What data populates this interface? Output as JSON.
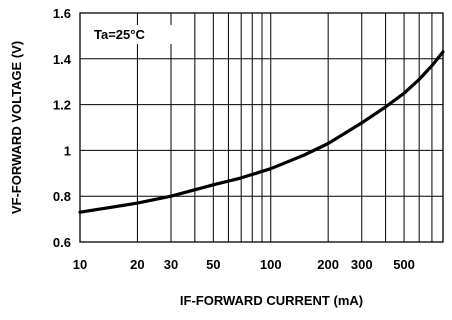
{
  "chart_data": {
    "type": "line",
    "xscale": "log",
    "xlim": [
      10,
      800
    ],
    "ylim": [
      0.6,
      1.6
    ],
    "xlabel": "IF-FORWARD CURRENT (mA)",
    "ylabel": "VF-FORWARD VOLTAGE (V)",
    "annotation": "Ta=25°C",
    "grid": true,
    "x_ticks": [
      10,
      20,
      30,
      50,
      100,
      200,
      300,
      500
    ],
    "x_tick_labels": [
      "10",
      "20",
      "30",
      "50",
      "100",
      "200",
      "300",
      "500"
    ],
    "y_ticks": [
      0.6,
      0.8,
      1.0,
      1.2,
      1.4,
      1.6
    ],
    "y_tick_labels": [
      "0.6",
      "0.8",
      "1",
      "1.2",
      "1.4",
      "1.6"
    ],
    "series": [
      {
        "x": [
          10,
          20,
          30,
          50,
          70,
          100,
          150,
          200,
          300,
          400,
          500,
          600,
          700,
          800
        ],
        "y": [
          0.73,
          0.77,
          0.8,
          0.85,
          0.88,
          0.92,
          0.98,
          1.03,
          1.12,
          1.19,
          1.25,
          1.31,
          1.37,
          1.43
        ],
        "color": "#000000"
      }
    ]
  }
}
